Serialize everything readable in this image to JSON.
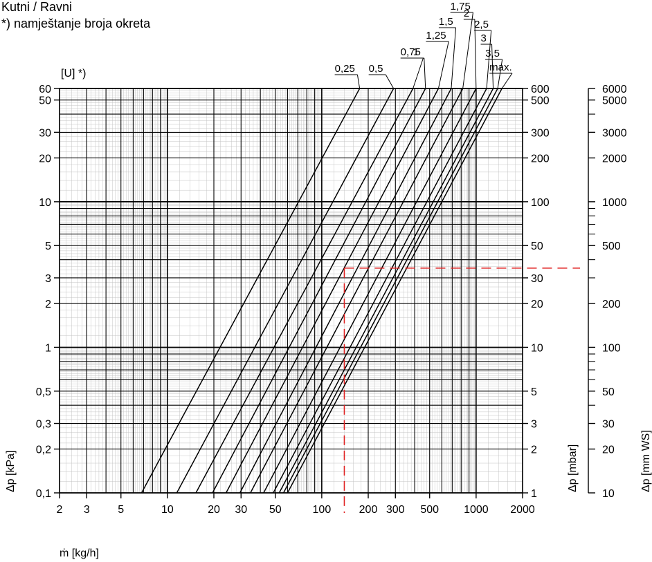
{
  "header": {
    "line1": "Kutni / Ravni",
    "line2": "*) namještanje broja okreta"
  },
  "chart_data": {
    "type": "line",
    "x_scale": "log",
    "y_scale": "log",
    "xlim": [
      2,
      2000
    ],
    "ylim": [
      0.1,
      60
    ],
    "grid": true,
    "xlabel": "ṁ [kg/h]",
    "ylabel_left": "Δp [kPa]",
    "ylabel_right_1": "Δp [mbar]",
    "ylabel_right_2": "Δp [mm WS]",
    "presetting_label": "[U] *)",
    "x_ticks": [
      {
        "v": 2,
        "t": "2"
      },
      {
        "v": 3,
        "t": "3"
      },
      {
        "v": 5,
        "t": "5"
      },
      {
        "v": 10,
        "t": "10"
      },
      {
        "v": 20,
        "t": "20"
      },
      {
        "v": 30,
        "t": "30"
      },
      {
        "v": 50,
        "t": "50"
      },
      {
        "v": 100,
        "t": "100"
      },
      {
        "v": 200,
        "t": "200"
      },
      {
        "v": 300,
        "t": "300"
      },
      {
        "v": 500,
        "t": "500"
      },
      {
        "v": 1000,
        "t": "1000"
      },
      {
        "v": 2000,
        "t": "2000"
      }
    ],
    "y_ticks_kpa": [
      {
        "v": 0.1,
        "t": "0,1"
      },
      {
        "v": 0.2,
        "t": "0,2"
      },
      {
        "v": 0.3,
        "t": "0,3"
      },
      {
        "v": 0.5,
        "t": "0,5"
      },
      {
        "v": 1,
        "t": "1"
      },
      {
        "v": 2,
        "t": "2"
      },
      {
        "v": 3,
        "t": "3"
      },
      {
        "v": 5,
        "t": "5"
      },
      {
        "v": 10,
        "t": "10"
      },
      {
        "v": 20,
        "t": "20"
      },
      {
        "v": 30,
        "t": "30"
      },
      {
        "v": 50,
        "t": "50"
      },
      {
        "v": 60,
        "t": "60"
      }
    ],
    "y_ticks_mbar": [
      {
        "v": 0.1,
        "t": "1"
      },
      {
        "v": 0.2,
        "t": "2"
      },
      {
        "v": 0.3,
        "t": "3"
      },
      {
        "v": 0.5,
        "t": "5"
      },
      {
        "v": 1,
        "t": "10"
      },
      {
        "v": 2,
        "t": "20"
      },
      {
        "v": 3,
        "t": "30"
      },
      {
        "v": 5,
        "t": "50"
      },
      {
        "v": 10,
        "t": "100"
      },
      {
        "v": 20,
        "t": "200"
      },
      {
        "v": 30,
        "t": "300"
      },
      {
        "v": 50,
        "t": "500"
      },
      {
        "v": 60,
        "t": "600"
      }
    ],
    "y_ticks_mmws": [
      {
        "v": 0.1,
        "t": "10"
      },
      {
        "v": 0.2,
        "t": "20"
      },
      {
        "v": 0.3,
        "t": "30"
      },
      {
        "v": 0.5,
        "t": "50"
      },
      {
        "v": 1,
        "t": "100"
      },
      {
        "v": 2,
        "t": "200"
      },
      {
        "v": 5,
        "t": "500"
      },
      {
        "v": 10,
        "t": "1000"
      },
      {
        "v": 20,
        "t": "2000"
      },
      {
        "v": 30,
        "t": "3000"
      },
      {
        "v": 50,
        "t": "5000"
      },
      {
        "v": 60,
        "t": "6000"
      }
    ],
    "series": [
      {
        "name": "0,25",
        "points": [
          [
            6.8,
            0.1
          ],
          [
            176,
            60
          ]
        ]
      },
      {
        "name": "0,5",
        "points": [
          [
            11.5,
            0.1
          ],
          [
            292,
            60
          ]
        ]
      },
      {
        "name": "0,75",
        "points": [
          [
            15.3,
            0.1
          ],
          [
            390,
            60
          ]
        ]
      },
      {
        "name": "1",
        "points": [
          [
            19.6,
            0.1
          ],
          [
            470,
            60
          ]
        ]
      },
      {
        "name": "1,25",
        "points": [
          [
            24,
            0.1
          ],
          [
            570,
            60
          ]
        ]
      },
      {
        "name": "1,5",
        "points": [
          [
            29.5,
            0.1
          ],
          [
            690,
            60
          ]
        ]
      },
      {
        "name": "1,75",
        "points": [
          [
            34.5,
            0.1
          ],
          [
            820,
            60
          ]
        ]
      },
      {
        "name": "2",
        "points": [
          [
            42,
            0.1
          ],
          [
            1000,
            60
          ]
        ]
      },
      {
        "name": "2,5",
        "points": [
          [
            48.5,
            0.1
          ],
          [
            1170,
            60
          ]
        ]
      },
      {
        "name": "3",
        "points": [
          [
            53,
            0.1
          ],
          [
            1290,
            60
          ]
        ]
      },
      {
        "name": "3,5",
        "points": [
          [
            56.5,
            0.1
          ],
          [
            1380,
            60
          ]
        ]
      },
      {
        "name": "max.",
        "points": [
          [
            60,
            0.1
          ],
          [
            1470,
            60
          ]
        ]
      }
    ],
    "reference": {
      "x": 140,
      "y": 3.5,
      "color": "#e02020"
    }
  }
}
